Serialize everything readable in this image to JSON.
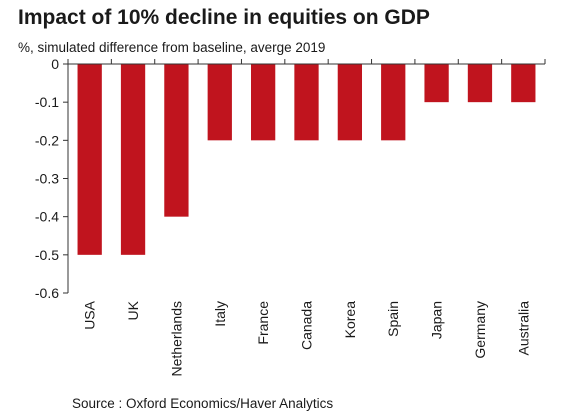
{
  "colors": {
    "bar": "#c0141e",
    "axis": "#333333"
  },
  "chart_data": {
    "type": "bar",
    "title": "Impact of 10% decline in equities on GDP",
    "subtitle": "%, simulated difference from baseline, averge 2019",
    "xlabel": "",
    "ylabel": "",
    "categories": [
      "USA",
      "UK",
      "Netherlands",
      "Italy",
      "France",
      "Canada",
      "Korea",
      "Spain",
      "Japan",
      "Germany",
      "Australia"
    ],
    "values": [
      -0.5,
      -0.5,
      -0.4,
      -0.2,
      -0.2,
      -0.2,
      -0.2,
      -0.2,
      -0.1,
      -0.1,
      -0.1
    ],
    "ylim": [
      -0.6,
      0
    ],
    "yticks": [
      0,
      -0.1,
      -0.2,
      -0.3,
      -0.4,
      -0.5,
      -0.6
    ],
    "ytick_labels": [
      "0",
      "-0.1",
      "-0.2",
      "-0.3",
      "-0.4",
      "-0.5",
      "-0.6"
    ],
    "grid": false,
    "source": "Source : Oxford Economics/Haver Analytics"
  }
}
